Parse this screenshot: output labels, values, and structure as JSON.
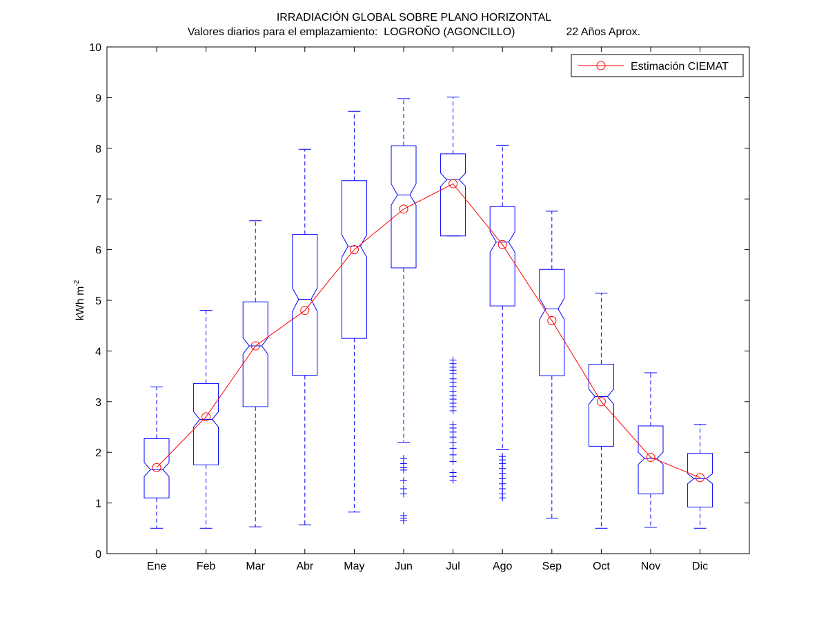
{
  "title": {
    "line1": "IRRADIACIÓN GLOBAL SOBRE PLANO HORIZONTAL",
    "line2_prefix": "Valores diarios para el emplazamiento:  LOGROÑO (AGONCILLO)",
    "line2_years": "22 Años Aprox."
  },
  "colors": {
    "box": "#0000ff",
    "estimate": "#ff0000",
    "axes": "#000000",
    "background": "#ffffff"
  },
  "chart_data": {
    "type": "box",
    "title": "IRRADIACIÓN GLOBAL SOBRE PLANO HORIZONTAL",
    "subtitle": "Valores diarios para el emplazamiento:  LOGROÑO (AGONCILLO)   22 Años Aprox.",
    "xlabel": "",
    "ylabel": "kWh m-2",
    "ylabel_main": "kWh m",
    "ylabel_sup": "-2",
    "ylim": [
      0,
      10
    ],
    "yticks": [
      "0",
      "1",
      "2",
      "3",
      "4",
      "5",
      "6",
      "7",
      "8",
      "9",
      "10"
    ],
    "grid": false,
    "legend_position": "top-right",
    "categories": [
      "Ene",
      "Feb",
      "Mar",
      "Abr",
      "May",
      "Jun",
      "Jul",
      "Ago",
      "Sep",
      "Oct",
      "Nov",
      "Dic"
    ],
    "boxes": [
      {
        "min": 0.5,
        "q1": 1.1,
        "median": 1.66,
        "q3": 2.27,
        "max": 3.29,
        "notch_lo": 1.52,
        "notch_hi": 1.8,
        "outliers": []
      },
      {
        "min": 0.5,
        "q1": 1.75,
        "median": 2.65,
        "q3": 3.36,
        "max": 4.8,
        "notch_lo": 2.5,
        "notch_hi": 2.8,
        "outliers": []
      },
      {
        "min": 0.53,
        "q1": 2.9,
        "median": 4.1,
        "q3": 4.97,
        "max": 6.57,
        "notch_lo": 3.94,
        "notch_hi": 4.26,
        "outliers": []
      },
      {
        "min": 0.57,
        "q1": 3.52,
        "median": 5.02,
        "q3": 6.3,
        "max": 7.98,
        "notch_lo": 4.78,
        "notch_hi": 5.24,
        "outliers": []
      },
      {
        "min": 0.82,
        "q1": 4.25,
        "median": 6.07,
        "q3": 7.36,
        "max": 8.73,
        "notch_lo": 5.85,
        "notch_hi": 6.29,
        "outliers": []
      },
      {
        "min": 2.2,
        "q1": 5.64,
        "median": 7.08,
        "q3": 8.05,
        "max": 8.98,
        "notch_lo": 6.88,
        "notch_hi": 7.3,
        "outliers": [
          1.88,
          1.78,
          1.7,
          1.65,
          1.44,
          1.28,
          1.18,
          0.75,
          0.7,
          0.65
        ]
      },
      {
        "min": 6.27,
        "q1": 6.27,
        "median": 7.38,
        "q3": 7.89,
        "max": 9.01,
        "notch_lo": 7.25,
        "notch_hi": 7.51,
        "outliers": [
          3.82,
          3.75,
          3.68,
          3.62,
          3.55,
          3.45,
          3.38,
          3.3,
          3.2,
          3.12,
          3.05,
          2.97,
          2.9,
          2.82,
          2.55,
          2.48,
          2.4,
          2.3,
          2.2,
          2.08,
          1.95,
          1.82,
          1.6,
          1.52,
          1.45
        ]
      },
      {
        "min": 2.05,
        "q1": 4.89,
        "median": 6.15,
        "q3": 6.85,
        "max": 8.06,
        "notch_lo": 5.95,
        "notch_hi": 6.35,
        "outliers": [
          1.92,
          1.85,
          1.78,
          1.68,
          1.58,
          1.48,
          1.38,
          1.28,
          1.18,
          1.1
        ]
      },
      {
        "min": 0.7,
        "q1": 3.51,
        "median": 4.83,
        "q3": 5.61,
        "max": 6.76,
        "notch_lo": 4.62,
        "notch_hi": 5.04,
        "outliers": []
      },
      {
        "min": 0.5,
        "q1": 2.12,
        "median": 3.1,
        "q3": 3.74,
        "max": 5.14,
        "notch_lo": 2.95,
        "notch_hi": 3.25,
        "outliers": []
      },
      {
        "min": 0.52,
        "q1": 1.18,
        "median": 1.88,
        "q3": 2.52,
        "max": 3.57,
        "notch_lo": 1.76,
        "notch_hi": 2.0,
        "outliers": []
      },
      {
        "min": 0.5,
        "q1": 0.92,
        "median": 1.48,
        "q3": 1.98,
        "max": 2.55,
        "notch_lo": 1.38,
        "notch_hi": 1.58,
        "outliers": []
      }
    ],
    "series": [
      {
        "name": "Estimación CIEMAT",
        "values": [
          1.7,
          2.7,
          4.1,
          4.8,
          6.0,
          6.8,
          7.3,
          6.1,
          4.6,
          3.0,
          1.9,
          1.5
        ]
      }
    ]
  }
}
